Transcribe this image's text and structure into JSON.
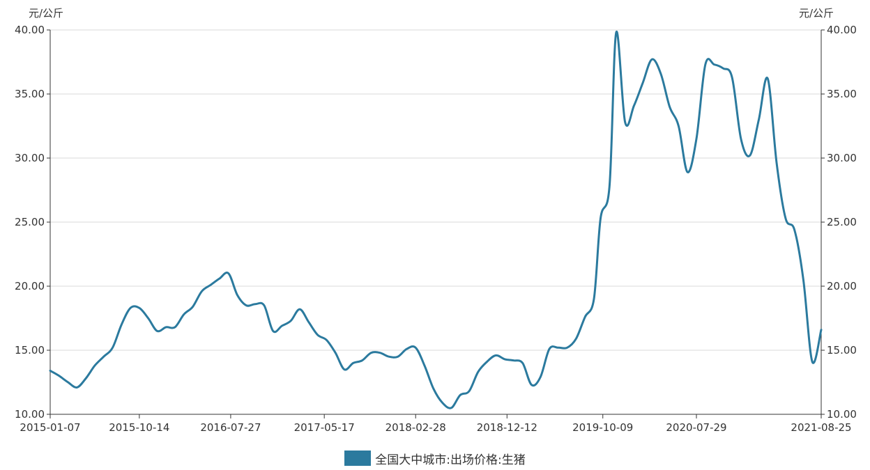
{
  "chart_data": {
    "type": "line",
    "y_unit_left": "元/公斤",
    "y_unit_right": "元/公斤",
    "ylim": [
      10,
      40
    ],
    "y_ticks": [
      "10.00",
      "15.00",
      "20.00",
      "25.00",
      "30.00",
      "35.00",
      "40.00"
    ],
    "x_ticks": [
      "2015-01-07",
      "2015-10-14",
      "2016-07-27",
      "2017-05-17",
      "2018-02-28",
      "2018-12-12",
      "2019-10-09",
      "2020-07-29",
      "2021-08-25"
    ],
    "xlim": [
      "2015-01-07",
      "2021-08-25"
    ],
    "grid": true,
    "legend": "bottom",
    "colors": {
      "series": "#2b7a9e",
      "grid": "#d9d9d9",
      "axis": "#333333"
    },
    "series": [
      {
        "name": "全国大中城市:出场价格:生猪",
        "x": [
          "2015-01-07",
          "2015-02-04",
          "2015-03-04",
          "2015-04-01",
          "2015-04-29",
          "2015-05-27",
          "2015-06-24",
          "2015-07-22",
          "2015-08-19",
          "2015-09-16",
          "2015-10-14",
          "2015-11-11",
          "2015-12-09",
          "2016-01-06",
          "2016-02-03",
          "2016-03-02",
          "2016-03-30",
          "2016-04-27",
          "2016-05-25",
          "2016-06-22",
          "2016-07-20",
          "2016-08-17",
          "2016-09-14",
          "2016-10-12",
          "2016-11-09",
          "2016-12-07",
          "2017-01-04",
          "2017-02-01",
          "2017-03-01",
          "2017-03-29",
          "2017-04-26",
          "2017-05-24",
          "2017-06-21",
          "2017-07-19",
          "2017-08-16",
          "2017-09-13",
          "2017-10-11",
          "2017-11-08",
          "2017-12-06",
          "2018-01-03",
          "2018-01-31",
          "2018-02-28",
          "2018-03-28",
          "2018-04-25",
          "2018-05-23",
          "2018-06-20",
          "2018-07-18",
          "2018-08-15",
          "2018-09-12",
          "2018-10-10",
          "2018-11-07",
          "2018-12-05",
          "2019-01-02",
          "2019-01-30",
          "2019-02-27",
          "2019-03-27",
          "2019-04-24",
          "2019-05-22",
          "2019-06-19",
          "2019-07-17",
          "2019-08-14",
          "2019-09-11",
          "2019-10-02",
          "2019-10-30",
          "2019-11-20",
          "2019-12-18",
          "2020-01-15",
          "2020-02-12",
          "2020-03-11",
          "2020-04-08",
          "2020-05-06",
          "2020-06-03",
          "2020-07-01",
          "2020-07-29",
          "2020-08-26",
          "2020-09-23",
          "2020-10-21",
          "2020-11-18",
          "2020-12-16",
          "2021-01-13",
          "2021-02-10",
          "2021-03-10",
          "2021-04-07",
          "2021-05-05",
          "2021-06-02",
          "2021-06-30",
          "2021-07-28",
          "2021-08-25"
        ],
        "values": [
          13.4,
          13.0,
          12.5,
          12.1,
          12.8,
          13.8,
          14.5,
          15.2,
          17.0,
          18.3,
          18.3,
          17.5,
          16.5,
          16.8,
          16.8,
          17.8,
          18.4,
          19.6,
          20.1,
          20.6,
          21.0,
          19.3,
          18.5,
          18.6,
          18.5,
          16.5,
          16.9,
          17.3,
          18.2,
          17.2,
          16.2,
          15.8,
          14.8,
          13.5,
          14.0,
          14.2,
          14.8,
          14.8,
          14.5,
          14.5,
          15.1,
          15.2,
          13.8,
          12.0,
          10.9,
          10.5,
          11.5,
          11.8,
          13.3,
          14.1,
          14.6,
          14.3,
          14.2,
          14.0,
          12.3,
          12.9,
          15.1,
          15.2,
          15.2,
          15.9,
          17.6,
          19.0,
          25.3,
          27.8,
          39.8,
          32.8,
          34.1,
          35.9,
          37.7,
          36.6,
          34.0,
          32.5,
          28.9,
          31.5,
          37.3,
          37.3,
          37.0,
          36.3,
          31.5,
          30.2,
          33.0,
          36.2,
          29.6,
          25.3,
          24.4,
          20.5,
          14.1,
          16.6
        ]
      }
    ]
  }
}
